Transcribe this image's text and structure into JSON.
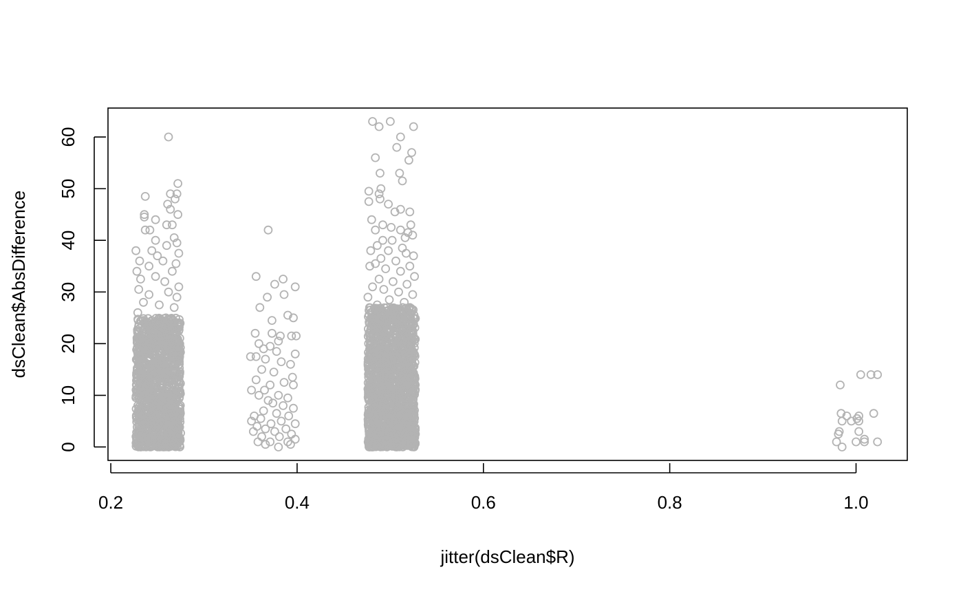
{
  "chart_data": {
    "type": "scatter",
    "title": "",
    "xlabel": "jitter(dsClean$R)",
    "ylabel": "dsClean$AbsDifference",
    "xlim": [
      0.197,
      1.055
    ],
    "ylim": [
      -2.6,
      65.6
    ],
    "x_ticks": [
      0.2,
      0.4,
      0.6,
      0.8,
      1.0
    ],
    "x_tick_labels": [
      "0.2",
      "0.4",
      "0.6",
      "0.8",
      "1.0"
    ],
    "y_ticks": [
      0,
      10,
      20,
      30,
      40,
      50,
      60
    ],
    "y_tick_labels": [
      "0",
      "10",
      "20",
      "30",
      "40",
      "50",
      "60"
    ],
    "grid": false,
    "legend": "none",
    "marker": "open-circle",
    "point_color": "#b3b3b3",
    "series": [
      {
        "points": [
          [
            0.262,
            60
          ],
          [
            0.272,
            51
          ],
          [
            0.264,
            49
          ],
          [
            0.271,
            49
          ],
          [
            0.237,
            48.5
          ],
          [
            0.269,
            48
          ],
          [
            0.261,
            47
          ],
          [
            0.264,
            46
          ],
          [
            0.236,
            45
          ],
          [
            0.272,
            45
          ],
          [
            0.236,
            44.5
          ],
          [
            0.248,
            44
          ],
          [
            0.26,
            43
          ],
          [
            0.266,
            43
          ],
          [
            0.237,
            42
          ],
          [
            0.242,
            42
          ],
          [
            0.268,
            40.5
          ],
          [
            0.248,
            40
          ],
          [
            0.271,
            39.5
          ],
          [
            0.26,
            39
          ],
          [
            0.227,
            38
          ],
          [
            0.244,
            38
          ],
          [
            0.273,
            37.5
          ],
          [
            0.25,
            37
          ],
          [
            0.231,
            36
          ],
          [
            0.256,
            36
          ],
          [
            0.27,
            35.5
          ],
          [
            0.241,
            35
          ],
          [
            0.266,
            34
          ],
          [
            0.228,
            34
          ],
          [
            0.248,
            33
          ],
          [
            0.232,
            32.5
          ],
          [
            0.258,
            32
          ],
          [
            0.273,
            31
          ],
          [
            0.23,
            30.5
          ],
          [
            0.262,
            30
          ],
          [
            0.241,
            29.5
          ],
          [
            0.271,
            29
          ],
          [
            0.235,
            28
          ],
          [
            0.252,
            27.5
          ],
          [
            0.268,
            27
          ],
          [
            0.229,
            26
          ]
        ]
      },
      {
        "points": [
          [
            0.369,
            42
          ],
          [
            0.398,
            31
          ],
          [
            0.385,
            32.5
          ],
          [
            0.356,
            33
          ],
          [
            0.376,
            31.5
          ],
          [
            0.386,
            29.5
          ],
          [
            0.368,
            29
          ],
          [
            0.36,
            27
          ],
          [
            0.39,
            25.5
          ],
          [
            0.396,
            25
          ],
          [
            0.373,
            24.5
          ],
          [
            0.355,
            22
          ],
          [
            0.373,
            22
          ],
          [
            0.382,
            21.5
          ],
          [
            0.394,
            21.5
          ],
          [
            0.399,
            21.5
          ],
          [
            0.38,
            20.5
          ],
          [
            0.359,
            20
          ],
          [
            0.371,
            19.5
          ],
          [
            0.364,
            19
          ],
          [
            0.378,
            18.5
          ],
          [
            0.398,
            18
          ],
          [
            0.35,
            17.5
          ],
          [
            0.356,
            17.5
          ],
          [
            0.366,
            17
          ],
          [
            0.383,
            16.5
          ],
          [
            0.393,
            16
          ],
          [
            0.362,
            15
          ],
          [
            0.375,
            14.5
          ],
          [
            0.395,
            13.5
          ],
          [
            0.356,
            13
          ],
          [
            0.386,
            12.5
          ],
          [
            0.371,
            12
          ],
          [
            0.396,
            12
          ],
          [
            0.351,
            11
          ],
          [
            0.365,
            11
          ],
          [
            0.38,
            10
          ],
          [
            0.359,
            10
          ],
          [
            0.39,
            9.5
          ],
          [
            0.369,
            9
          ],
          [
            0.374,
            8.5
          ],
          [
            0.385,
            8
          ],
          [
            0.396,
            7.5
          ],
          [
            0.364,
            7
          ],
          [
            0.378,
            6.5
          ],
          [
            0.354,
            6
          ],
          [
            0.391,
            6
          ],
          [
            0.361,
            5.5
          ],
          [
            0.351,
            5
          ],
          [
            0.383,
            5
          ],
          [
            0.372,
            4.5
          ],
          [
            0.398,
            4.5
          ],
          [
            0.357,
            4
          ],
          [
            0.366,
            3.5
          ],
          [
            0.388,
            3.5
          ],
          [
            0.353,
            3
          ],
          [
            0.376,
            3
          ],
          [
            0.394,
            2.5
          ],
          [
            0.362,
            2
          ],
          [
            0.381,
            2
          ],
          [
            0.398,
            1.5
          ],
          [
            0.358,
            1
          ],
          [
            0.371,
            1
          ],
          [
            0.39,
            1
          ],
          [
            0.366,
            0.5
          ],
          [
            0.393,
            0.5
          ],
          [
            0.38,
            0
          ]
        ]
      },
      {
        "points": [
          [
            0.5,
            63
          ],
          [
            0.481,
            63
          ],
          [
            0.525,
            62
          ],
          [
            0.488,
            62
          ],
          [
            0.511,
            60
          ],
          [
            0.507,
            58
          ],
          [
            0.523,
            57
          ],
          [
            0.484,
            56
          ],
          [
            0.52,
            55.5
          ],
          [
            0.489,
            53
          ],
          [
            0.51,
            53
          ],
          [
            0.513,
            51.5
          ],
          [
            0.49,
            50
          ],
          [
            0.477,
            49.5
          ],
          [
            0.488,
            49
          ],
          [
            0.477,
            47.5
          ],
          [
            0.489,
            48
          ],
          [
            0.498,
            47
          ],
          [
            0.511,
            46
          ],
          [
            0.505,
            45.5
          ],
          [
            0.521,
            45.5
          ],
          [
            0.48,
            44
          ],
          [
            0.492,
            43
          ],
          [
            0.522,
            43
          ],
          [
            0.501,
            42.5
          ],
          [
            0.484,
            42
          ],
          [
            0.511,
            42
          ],
          [
            0.519,
            41.5
          ],
          [
            0.524,
            41
          ],
          [
            0.516,
            40.5
          ],
          [
            0.492,
            40
          ],
          [
            0.502,
            40
          ],
          [
            0.486,
            39
          ],
          [
            0.513,
            38.5
          ],
          [
            0.479,
            38
          ],
          [
            0.498,
            38
          ],
          [
            0.517,
            37.5
          ],
          [
            0.525,
            37
          ],
          [
            0.49,
            36.5
          ],
          [
            0.506,
            36
          ],
          [
            0.484,
            35.5
          ],
          [
            0.521,
            35
          ],
          [
            0.478,
            35
          ],
          [
            0.495,
            34.5
          ],
          [
            0.511,
            34
          ],
          [
            0.526,
            33
          ],
          [
            0.488,
            32.5
          ],
          [
            0.503,
            32
          ],
          [
            0.518,
            31.5
          ],
          [
            0.481,
            31
          ],
          [
            0.493,
            30.5
          ],
          [
            0.509,
            30
          ],
          [
            0.524,
            29.5
          ],
          [
            0.476,
            29
          ],
          [
            0.499,
            28.5
          ],
          [
            0.515,
            28
          ],
          [
            0.486,
            27.5
          ],
          [
            0.521,
            27
          ],
          [
            0.504,
            26.5
          ]
        ]
      },
      {
        "points": [
          [
            0.983,
            12
          ],
          [
            1.005,
            14
          ],
          [
            1.016,
            14
          ],
          [
            1.023,
            14
          ],
          [
            1.003,
            6
          ],
          [
            0.984,
            6.5
          ],
          [
            0.99,
            6
          ],
          [
            1.001,
            5.5
          ],
          [
            1.019,
            6.5
          ],
          [
            0.985,
            5
          ],
          [
            0.995,
            5
          ],
          [
            1.003,
            5
          ],
          [
            0.982,
            3
          ],
          [
            1.003,
            3
          ],
          [
            0.981,
            2.5
          ],
          [
            1.009,
            1.5
          ],
          [
            0.979,
            1
          ],
          [
            1.0,
            1
          ],
          [
            1.009,
            1
          ],
          [
            1.023,
            1
          ],
          [
            0.985,
            0
          ]
        ]
      }
    ],
    "dense_bands": [
      {
        "x_range": [
          0.227,
          0.275
        ],
        "y_range": [
          0,
          25
        ],
        "count": 1300
      },
      {
        "x_range": [
          0.476,
          0.527
        ],
        "y_range": [
          0,
          27
        ],
        "count": 1600
      }
    ]
  }
}
